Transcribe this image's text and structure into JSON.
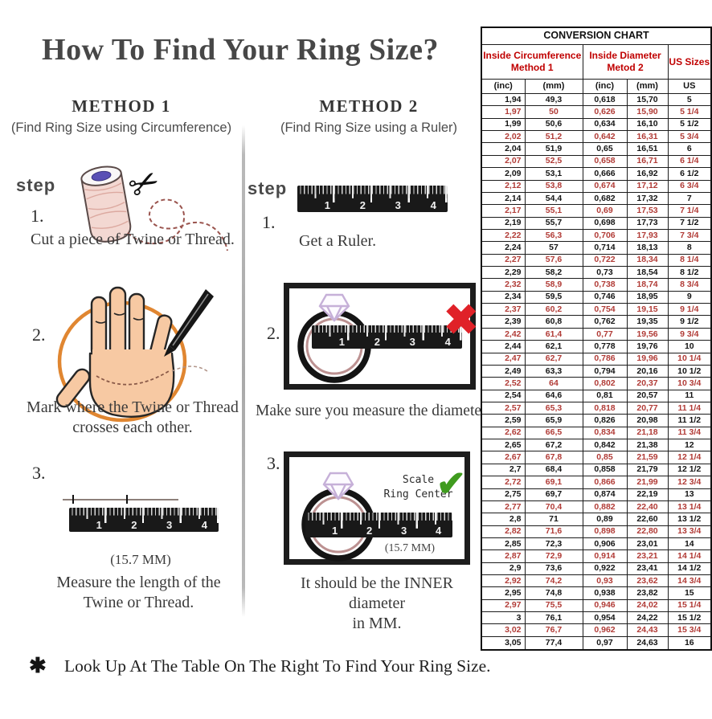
{
  "title": "How To Find Your Ring Size?",
  "icons": {
    "scissors": "✂",
    "x_mark": "✖",
    "check_mark": "✔",
    "asterisk": "✱"
  },
  "ruler_numbers": [
    "1",
    "2",
    "3",
    "4"
  ],
  "method1": {
    "heading": "METHOD 1",
    "subheading": "(Find Ring Size using Circumference)",
    "step_label": "step",
    "steps": [
      {
        "num": "1.",
        "caption": "Cut a piece of Twine or Thread."
      },
      {
        "num": "2.",
        "caption_line1": "Mark where the Twine or Thread",
        "caption_line2": "crosses each other."
      },
      {
        "num": "3.",
        "note": "(15.7 MM)",
        "caption_line1": "Measure the length of the",
        "caption_line2": "Twine or Thread."
      }
    ]
  },
  "method2": {
    "heading": "METHOD 2",
    "subheading": "(Find Ring Size using a Ruler)",
    "step_label": "step",
    "steps": [
      {
        "num": "1.",
        "caption": "Get a Ruler."
      },
      {
        "num": "2.",
        "caption": "Make sure you measure the diameter."
      },
      {
        "num": "3.",
        "scale_line1": "Scale",
        "scale_line2": "Ring Center",
        "mm_note": "(15.7 MM)",
        "caption_line1": "It should be the INNER diameter",
        "caption_line2": "in MM."
      }
    ]
  },
  "footer": {
    "text": "Look Up At The Table On The Right To Find Your Ring Size."
  },
  "table": {
    "title": "CONVERSION CHART",
    "group1": {
      "line1": "Inside Circumference",
      "line2": "Method 1"
    },
    "group2": {
      "line1": "Inside Diameter",
      "line2": "Metod 2"
    },
    "group3": "US Sizes",
    "columns": [
      "(inc)",
      "(mm)",
      "(inc)",
      "(mm)",
      "US"
    ],
    "colors": {
      "header_red": "#c00000",
      "row_red": "#b13b36"
    },
    "rows": [
      [
        "1,94",
        "49,3",
        "0,618",
        "15,70",
        "5"
      ],
      [
        "1,97",
        "50",
        "0,626",
        "15,90",
        "5 1/4"
      ],
      [
        "1,99",
        "50,6",
        "0,634",
        "16,10",
        "5 1/2"
      ],
      [
        "2,02",
        "51,2",
        "0,642",
        "16,31",
        "5 3/4"
      ],
      [
        "2,04",
        "51,9",
        "0,65",
        "16,51",
        "6"
      ],
      [
        "2,07",
        "52,5",
        "0,658",
        "16,71",
        "6 1/4"
      ],
      [
        "2,09",
        "53,1",
        "0,666",
        "16,92",
        "6 1/2"
      ],
      [
        "2,12",
        "53,8",
        "0,674",
        "17,12",
        "6 3/4"
      ],
      [
        "2,14",
        "54,4",
        "0,682",
        "17,32",
        "7"
      ],
      [
        "2,17",
        "55,1",
        "0,69",
        "17,53",
        "7 1/4"
      ],
      [
        "2,19",
        "55,7",
        "0,698",
        "17,73",
        "7 1/2"
      ],
      [
        "2,22",
        "56,3",
        "0,706",
        "17,93",
        "7 3/4"
      ],
      [
        "2,24",
        "57",
        "0,714",
        "18,13",
        "8"
      ],
      [
        "2,27",
        "57,6",
        "0,722",
        "18,34",
        "8 1/4"
      ],
      [
        "2,29",
        "58,2",
        "0,73",
        "18,54",
        "8 1/2"
      ],
      [
        "2,32",
        "58,9",
        "0,738",
        "18,74",
        "8 3/4"
      ],
      [
        "2,34",
        "59,5",
        "0,746",
        "18,95",
        "9"
      ],
      [
        "2,37",
        "60,2",
        "0,754",
        "19,15",
        "9 1/4"
      ],
      [
        "2,39",
        "60,8",
        "0,762",
        "19,35",
        "9 1/2"
      ],
      [
        "2,42",
        "61,4",
        "0,77",
        "19,56",
        "9 3/4"
      ],
      [
        "2,44",
        "62,1",
        "0,778",
        "19,76",
        "10"
      ],
      [
        "2,47",
        "62,7",
        "0,786",
        "19,96",
        "10 1/4"
      ],
      [
        "2,49",
        "63,3",
        "0,794",
        "20,16",
        "10 1/2"
      ],
      [
        "2,52",
        "64",
        "0,802",
        "20,37",
        "10 3/4"
      ],
      [
        "2,54",
        "64,6",
        "0,81",
        "20,57",
        "11"
      ],
      [
        "2,57",
        "65,3",
        "0,818",
        "20,77",
        "11 1/4"
      ],
      [
        "2,59",
        "65,9",
        "0,826",
        "20,98",
        "11 1/2"
      ],
      [
        "2,62",
        "66,5",
        "0,834",
        "21,18",
        "11 3/4"
      ],
      [
        "2,65",
        "67,2",
        "0,842",
        "21,38",
        "12"
      ],
      [
        "2,67",
        "67,8",
        "0,85",
        "21,59",
        "12 1/4"
      ],
      [
        "2,7",
        "68,4",
        "0,858",
        "21,79",
        "12 1/2"
      ],
      [
        "2,72",
        "69,1",
        "0,866",
        "21,99",
        "12 3/4"
      ],
      [
        "2,75",
        "69,7",
        "0,874",
        "22,19",
        "13"
      ],
      [
        "2,77",
        "70,4",
        "0,882",
        "22,40",
        "13 1/4"
      ],
      [
        "2,8",
        "71",
        "0,89",
        "22,60",
        "13 1/2"
      ],
      [
        "2,82",
        "71,6",
        "0,898",
        "22,80",
        "13 3/4"
      ],
      [
        "2,85",
        "72,3",
        "0,906",
        "23,01",
        "14"
      ],
      [
        "2,87",
        "72,9",
        "0,914",
        "23,21",
        "14 1/4"
      ],
      [
        "2,9",
        "73,6",
        "0,922",
        "23,41",
        "14 1/2"
      ],
      [
        "2,92",
        "74,2",
        "0,93",
        "23,62",
        "14 3/4"
      ],
      [
        "2,95",
        "74,8",
        "0,938",
        "23,82",
        "15"
      ],
      [
        "2,97",
        "75,5",
        "0,946",
        "24,02",
        "15 1/4"
      ],
      [
        "3",
        "76,1",
        "0,954",
        "24,22",
        "15 1/2"
      ],
      [
        "3,02",
        "76,7",
        "0,962",
        "24,43",
        "15 3/4"
      ],
      [
        "3,05",
        "77,4",
        "0,97",
        "24,63",
        "16"
      ]
    ]
  }
}
